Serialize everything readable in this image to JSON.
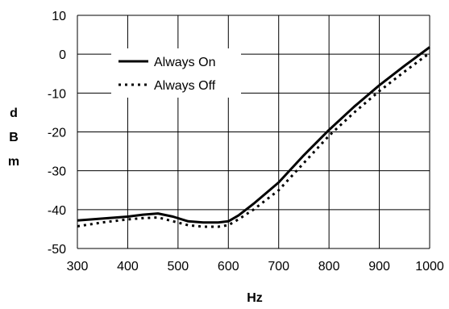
{
  "chart_data": {
    "type": "line",
    "title": "",
    "xlabel": "Hz",
    "ylabel": "dBm",
    "ylabel_letters": [
      "d",
      "B",
      "m"
    ],
    "xlim": [
      300,
      1000
    ],
    "ylim": [
      -50,
      10
    ],
    "xticks": [
      300,
      400,
      500,
      600,
      700,
      800,
      900,
      1000
    ],
    "yticks": [
      -50,
      -40,
      -30,
      -20,
      -10,
      0,
      10
    ],
    "grid": true,
    "legend_position": "top-left",
    "series": [
      {
        "name": "Always On",
        "style": "solid",
        "color": "#000000",
        "x": [
          300,
          350,
          400,
          430,
          460,
          490,
          520,
          550,
          580,
          600,
          620,
          650,
          700,
          750,
          800,
          850,
          900,
          950,
          1000
        ],
        "y": [
          -42.8,
          -42.3,
          -41.8,
          -41.3,
          -41.0,
          -41.8,
          -43.0,
          -43.3,
          -43.3,
          -43.0,
          -41.5,
          -38.5,
          -33.0,
          -26.0,
          -19.5,
          -13.5,
          -8.0,
          -3.0,
          1.8
        ]
      },
      {
        "name": "Always Off",
        "style": "dotted",
        "color": "#000000",
        "x": [
          300,
          350,
          400,
          430,
          460,
          490,
          520,
          550,
          580,
          600,
          620,
          650,
          700,
          750,
          800,
          850,
          900,
          950,
          1000
        ],
        "y": [
          -44.3,
          -43.3,
          -42.5,
          -42.2,
          -42.0,
          -43.0,
          -44.0,
          -44.4,
          -44.4,
          -44.0,
          -42.5,
          -40.0,
          -35.0,
          -28.0,
          -21.0,
          -15.0,
          -9.5,
          -4.5,
          0.3
        ]
      }
    ]
  }
}
